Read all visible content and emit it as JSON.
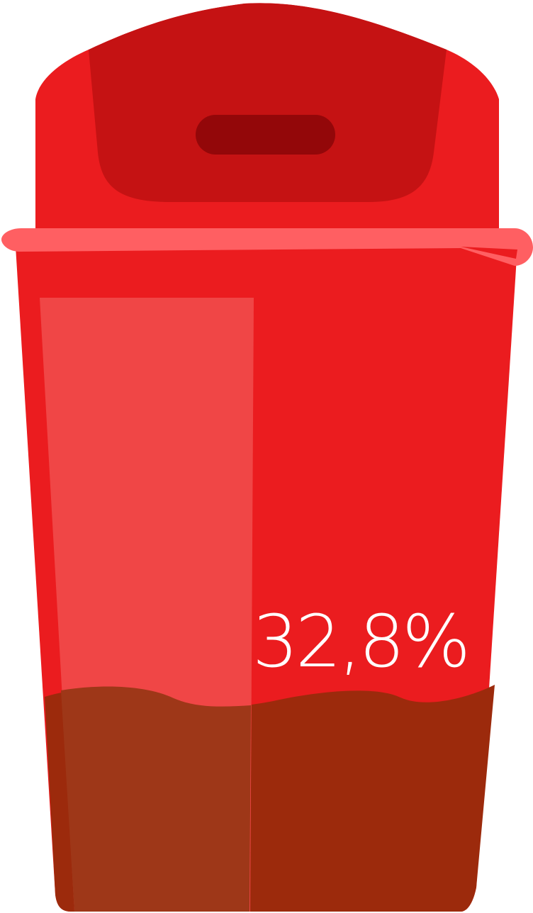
{
  "fill": {
    "percent_label": "32,8%",
    "level": 0.328
  },
  "colors": {
    "bin_red": "#EB1C1F",
    "lid_dark": "#C51213",
    "handle_slot": "#930709",
    "rim": "#FF5F62",
    "highlight": "#F04646",
    "fill_brown": "#9C2A0C",
    "fill_brown_highlight": "#9E3718",
    "text": "#FFFFFF"
  },
  "icons": {
    "figure": "trash-bin-icon"
  }
}
